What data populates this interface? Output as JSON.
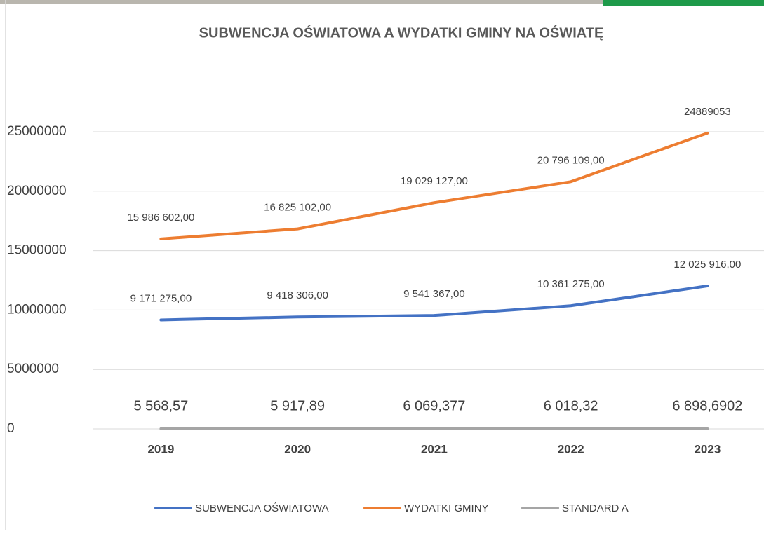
{
  "chart_data": {
    "type": "line",
    "title": "SUBWENCJA OŚWIATOWA  A WYDATKI GMINY NA OŚWIATĘ",
    "categories": [
      "2019",
      "2020",
      "2021",
      "2022",
      "2023"
    ],
    "series": [
      {
        "name": "SUBWENCJA OŚWIATOWA",
        "color": "#4472c4",
        "values": [
          9171275,
          9418306,
          9541367,
          10361275,
          12025916
        ],
        "value_labels": [
          "9 171 275,00",
          "9 418 306,00",
          "9 541 367,00",
          "10 361 275,00",
          "12 025 916,00"
        ]
      },
      {
        "name": "WYDATKI GMINY",
        "color": "#ed7d31",
        "values": [
          15986602,
          16825102,
          19029127,
          20796109,
          24889053
        ],
        "value_labels": [
          "15 986 602,00",
          "16 825 102,00",
          "19 029 127,00",
          "20 796 109,00",
          "24889053"
        ]
      },
      {
        "name": "STANDARD A",
        "color": "#a5a5a5",
        "values": [
          5568.57,
          5917.89,
          6069.377,
          6018.32,
          6898.6902
        ],
        "value_labels": [
          "5 568,57",
          "5 917,89",
          "6 069,377",
          "6 018,32",
          "6 898,6902"
        ]
      }
    ],
    "ylim": [
      0,
      25000000
    ],
    "yticks": [
      0,
      5000000,
      10000000,
      15000000,
      20000000,
      25000000
    ],
    "grid": true,
    "legend": "bottom"
  }
}
